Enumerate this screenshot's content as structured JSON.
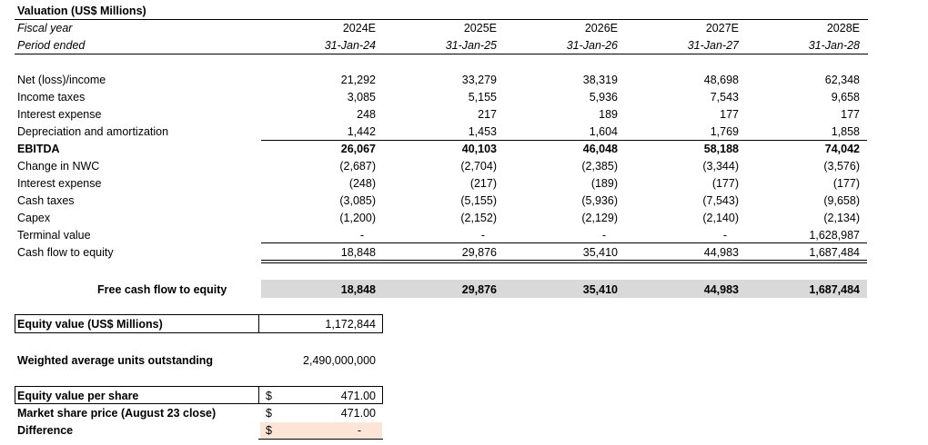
{
  "title": "Valuation (US$ Millions)",
  "header": {
    "fiscal_label": "Fiscal year",
    "period_label": "Period ended",
    "years": [
      "2024E",
      "2025E",
      "2026E",
      "2027E",
      "2028E"
    ],
    "periods": [
      "31-Jan-24",
      "31-Jan-25",
      "31-Jan-26",
      "31-Jan-27",
      "31-Jan-28"
    ]
  },
  "rows": [
    {
      "label": "Net (loss)/income",
      "values": [
        "21,292",
        "33,279",
        "38,319",
        "48,698",
        "62,348"
      ]
    },
    {
      "label": "Income taxes",
      "values": [
        "3,085",
        "5,155",
        "5,936",
        "7,543",
        "9,658"
      ]
    },
    {
      "label": "Interest expense",
      "values": [
        "248",
        "217",
        "189",
        "177",
        "177"
      ]
    },
    {
      "label": "Depreciation and amortization",
      "values": [
        "1,442",
        "1,453",
        "1,604",
        "1,769",
        "1,858"
      ]
    },
    {
      "label": "EBITDA",
      "values": [
        "26,067",
        "40,103",
        "46,048",
        "58,188",
        "74,042"
      ]
    },
    {
      "label": "Change in NWC",
      "values": [
        "(2,687)",
        "(2,704)",
        "(2,385)",
        "(3,344)",
        "(3,576)"
      ]
    },
    {
      "label": "Interest expense",
      "values": [
        "(248)",
        "(217)",
        "(189)",
        "(177)",
        "(177)"
      ]
    },
    {
      "label": "Cash taxes",
      "values": [
        "(3,085)",
        "(5,155)",
        "(5,936)",
        "(7,543)",
        "(9,658)"
      ]
    },
    {
      "label": "Capex",
      "values": [
        "(1,200)",
        "(2,152)",
        "(2,129)",
        "(2,140)",
        "(2,134)"
      ]
    },
    {
      "label": "Terminal value",
      "values": [
        "-",
        "-",
        "-",
        "-",
        "1,628,987"
      ]
    },
    {
      "label": "Cash flow to equity",
      "values": [
        "18,848",
        "29,876",
        "35,410",
        "44,983",
        "1,687,484"
      ]
    }
  ],
  "fcfe": {
    "label": "Free cash flow to equity",
    "values": [
      "18,848",
      "29,876",
      "35,410",
      "44,983",
      "1,687,484"
    ]
  },
  "equity_value": {
    "label": "Equity value (US$ Millions)",
    "value": "1,172,844"
  },
  "units": {
    "label": "Weighted average units outstanding",
    "value": "2,490,000,000"
  },
  "per_share": [
    {
      "label": "Equity value per share",
      "currency": "$",
      "value": "471.00"
    },
    {
      "label": "Market share price (August 23 close)",
      "currency": "$",
      "value": "471.00"
    },
    {
      "label": "Difference",
      "currency": "$",
      "value": "-"
    }
  ]
}
